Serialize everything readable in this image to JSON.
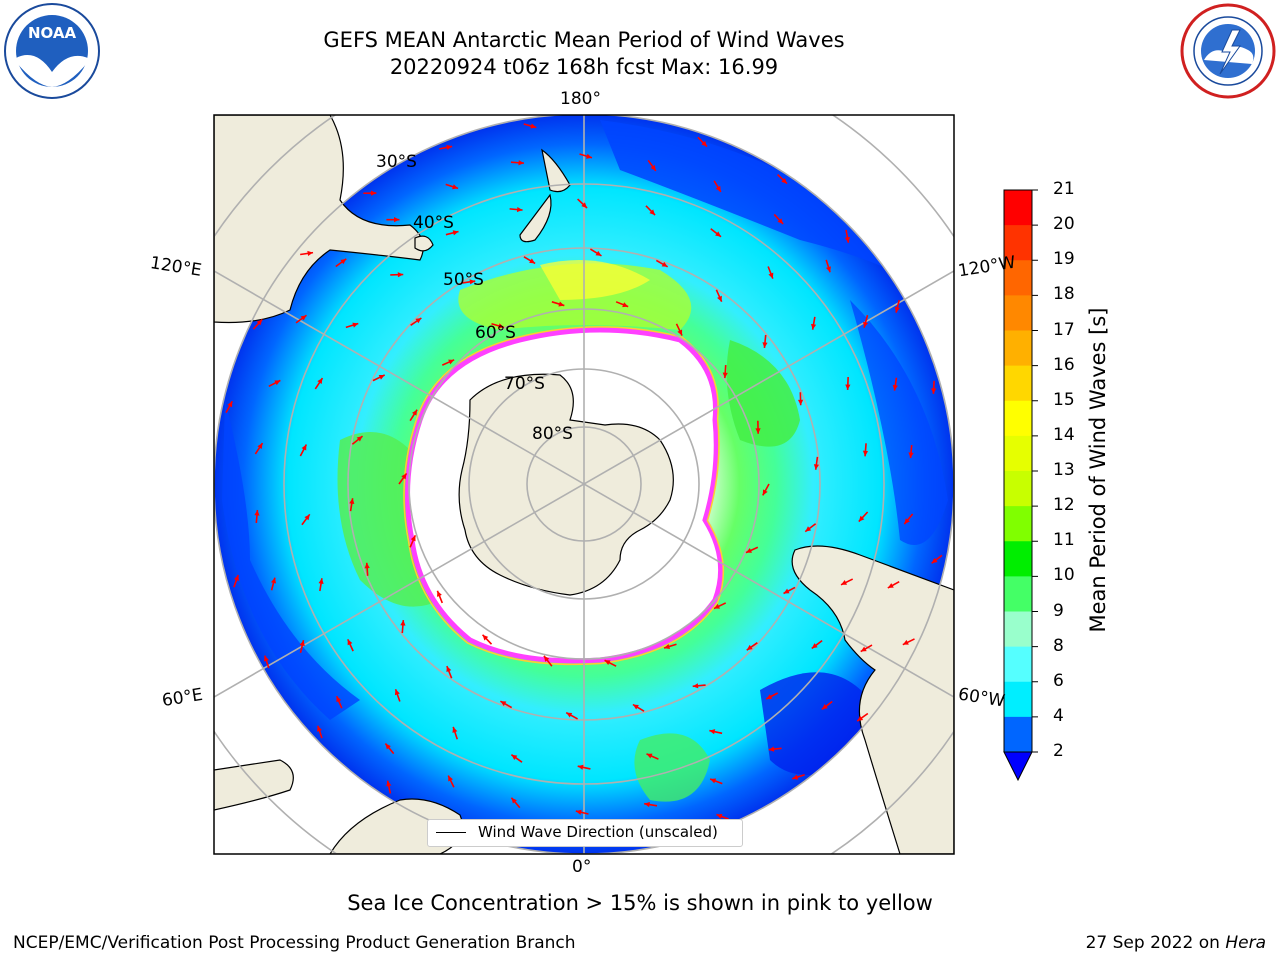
{
  "header": {
    "title_line1": "GEFS MEAN Antarctic Mean Period of Wind Waves",
    "title_line2": "20220924 t06z 168h fcst   Max: 16.99"
  },
  "logos": {
    "left": "noaa-logo",
    "right": "national-weather-service-logo"
  },
  "map": {
    "projection": "south-polar-stereographic",
    "longitude_labels": {
      "top": "180°",
      "bottom": "0°",
      "upper_left": "120°E",
      "upper_right": "120°W",
      "lower_left": "60°E",
      "lower_right": "60°W"
    },
    "latitude_labels": [
      "30°S",
      "40°S",
      "50°S",
      "60°S",
      "70°S",
      "80°S"
    ],
    "colors": {
      "land": "#efecdc",
      "ice_edge_pink": "#ff40ff",
      "ice_edge_yellow": "#ffcc33",
      "arrows": "#ff0000",
      "grid": "#b0b0b0"
    }
  },
  "legend": {
    "label": "Wind Wave Direction (unscaled)"
  },
  "colorbar": {
    "label": "Mean Period of Wind Waves [s]",
    "ticks": [
      "21",
      "20",
      "19",
      "18",
      "17",
      "16",
      "15",
      "14",
      "13",
      "12",
      "11",
      "10",
      "9",
      "8",
      "6",
      "4",
      "2"
    ],
    "colors_top_to_bottom": [
      "#ff0000",
      "#ff3300",
      "#ff6600",
      "#ff8800",
      "#ffb000",
      "#ffd700",
      "#ffff00",
      "#e6ff00",
      "#c8ff00",
      "#80ff00",
      "#00ee00",
      "#44ff66",
      "#99ffcc",
      "#55ffff",
      "#00eeff",
      "#0066ff"
    ],
    "under_color": "#0000ff"
  },
  "note": "Sea Ice Concentration > 15% is shown in pink to yellow",
  "footer": {
    "left": "NCEP/EMC/Verification Post Processing Product Generation Branch",
    "right_date": "27 Sep 2022 on ",
    "right_host": "Hera"
  }
}
